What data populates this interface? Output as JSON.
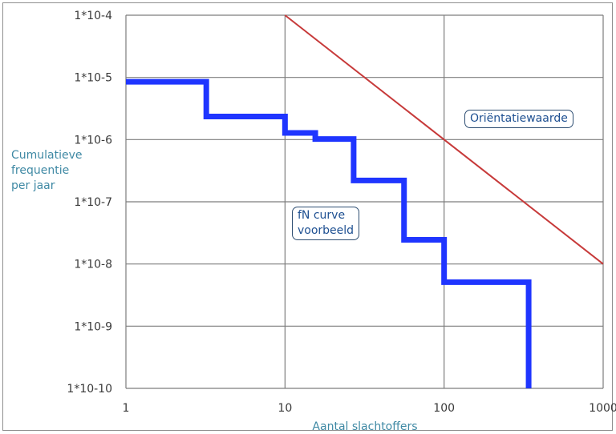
{
  "chart_data": {
    "type": "line",
    "x_axis": {
      "label": "Aantal slachtoffers",
      "scale": "log",
      "range": [
        1,
        1000
      ],
      "tick_values": [
        1,
        10,
        100,
        1000
      ],
      "tick_labels": [
        "1",
        "10",
        "100",
        "1000"
      ]
    },
    "y_axis": {
      "label_lines": [
        "Cumulatieve",
        "frequentie",
        "per jaar"
      ],
      "scale": "log",
      "range": [
        1e-10,
        0.0001
      ],
      "tick_values": [
        0.0001,
        1e-05,
        1e-06,
        1e-07,
        1e-08,
        1e-09,
        1e-10
      ],
      "tick_labels": [
        "1*10-4",
        "1*10-5",
        "1*10-6",
        "1*10-7",
        "1*10-8",
        "1*10-9",
        "1*10-10"
      ]
    },
    "grid": true,
    "series": [
      {
        "key": "fn_curve",
        "line_style": "step",
        "color": "#1f35ff",
        "points": [
          [
            1,
            8.5e-06
          ],
          [
            3.2,
            8.5e-06
          ],
          [
            3.2,
            2.35e-06
          ],
          [
            10,
            2.35e-06
          ],
          [
            10,
            1.28e-06
          ],
          [
            15.5,
            1.28e-06
          ],
          [
            15.5,
            1.02e-06
          ],
          [
            27,
            1.02e-06
          ],
          [
            27,
            2.2e-07
          ],
          [
            56,
            2.2e-07
          ],
          [
            56,
            2.45e-08
          ],
          [
            100,
            2.45e-08
          ],
          [
            100,
            5.1e-09
          ],
          [
            340,
            5.1e-09
          ],
          [
            340,
            1e-10
          ]
        ]
      },
      {
        "key": "reference_line",
        "line_style": "straight",
        "color": "#c73a3a",
        "points": [
          [
            10,
            0.0001
          ],
          [
            1000,
            1e-08
          ]
        ]
      }
    ],
    "annotations": {
      "reference_label": "Oriëntatiewaarde",
      "fn_label_lines": [
        "fN curve",
        "voorbeeld"
      ]
    }
  }
}
